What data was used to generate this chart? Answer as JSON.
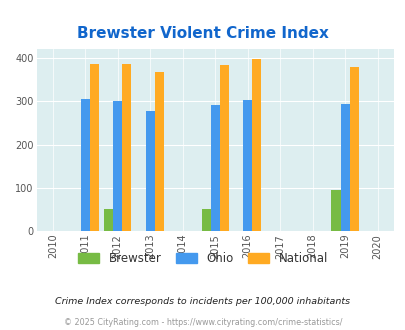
{
  "title": "Brewster Violent Crime Index",
  "years": [
    2010,
    2011,
    2012,
    2013,
    2014,
    2015,
    2016,
    2017,
    2018,
    2019,
    2020
  ],
  "brewster": {
    "2012": 50,
    "2015": 50,
    "2019": 95
  },
  "ohio": {
    "2011": 306,
    "2012": 300,
    "2013": 277,
    "2015": 292,
    "2016": 302,
    "2019": 294
  },
  "national": {
    "2011": 387,
    "2012": 387,
    "2013": 368,
    "2015": 384,
    "2016": 397,
    "2019": 379
  },
  "bar_width": 0.28,
  "xlim": [
    2009.5,
    2020.5
  ],
  "ylim": [
    0,
    420
  ],
  "yticks": [
    0,
    100,
    200,
    300,
    400
  ],
  "color_brewster": "#77bb44",
  "color_ohio": "#4499ee",
  "color_national": "#ffaa22",
  "bg_color": "#ddeef0",
  "title_color": "#1166cc",
  "title_fontsize": 11,
  "footnote1": "Crime Index corresponds to incidents per 100,000 inhabitants",
  "footnote2": "© 2025 CityRating.com - https://www.cityrating.com/crime-statistics/",
  "legend_labels": [
    "Brewster",
    "Ohio",
    "National"
  ]
}
